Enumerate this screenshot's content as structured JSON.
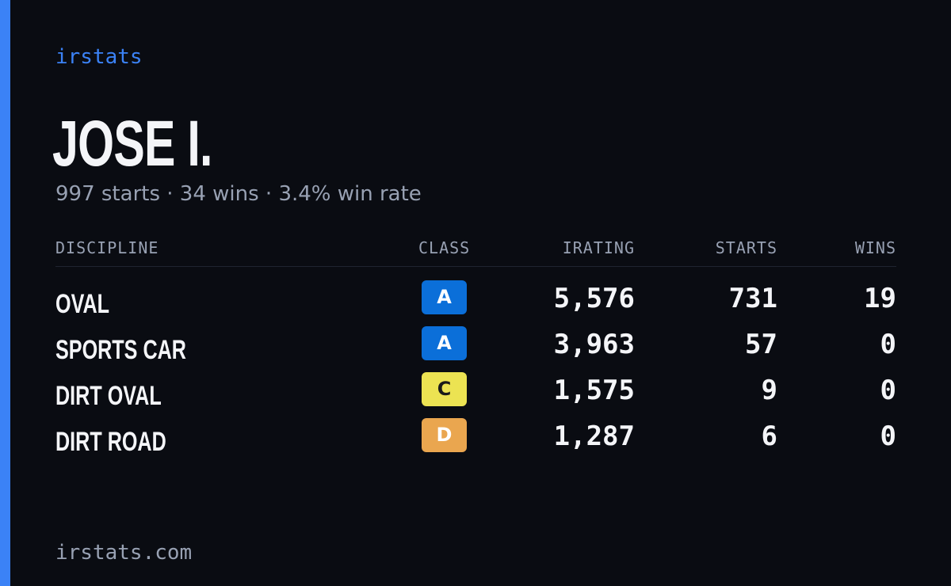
{
  "brand": "irstats",
  "driver": {
    "name": "JOSE I.",
    "summary": "997 starts · 34 wins · 3.4% win rate"
  },
  "table": {
    "headers": {
      "discipline": "DISCIPLINE",
      "class": "CLASS",
      "irating": "IRATING",
      "starts": "STARTS",
      "wins": "WINS"
    },
    "rows": [
      {
        "discipline": "OVAL",
        "class": "A",
        "irating": "5,576",
        "starts": "731",
        "wins": "19"
      },
      {
        "discipline": "SPORTS CAR",
        "class": "A",
        "irating": "3,963",
        "starts": "57",
        "wins": "0"
      },
      {
        "discipline": "DIRT OVAL",
        "class": "C",
        "irating": "1,575",
        "starts": "9",
        "wins": "0"
      },
      {
        "discipline": "DIRT ROAD",
        "class": "D",
        "irating": "1,287",
        "starts": "6",
        "wins": "0"
      }
    ]
  },
  "class_colors": {
    "A": {
      "bg": "#0b6fd9",
      "fg": "#ffffff"
    },
    "C": {
      "bg": "#ece352",
      "fg": "#1a1a1a"
    },
    "D": {
      "bg": "#eaa64f",
      "fg": "#ffffff"
    }
  },
  "colors": {
    "accent": "#3b82f6",
    "background": "#0a0c12",
    "text": "#f4f5f8",
    "muted": "#98a1b3"
  },
  "footer": "irstats.com"
}
